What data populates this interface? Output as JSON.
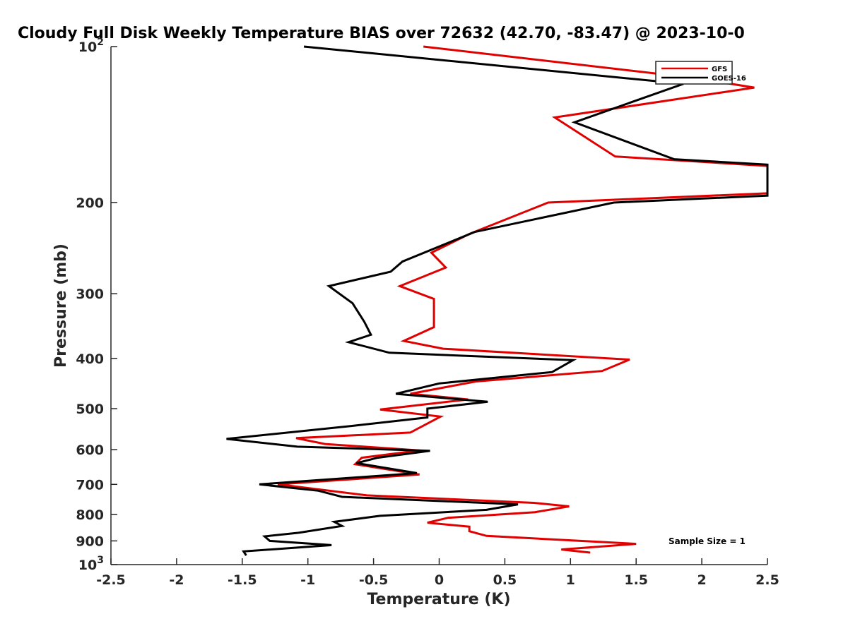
{
  "chart_data": {
    "type": "line",
    "title": "Cloudy Full Disk Weekly Temperature BIAS over 72632 (42.70, -83.47) @ 2023-10-0",
    "xlabel": "Temperature (K)",
    "ylabel": "Pressure (mb)",
    "xlim": [
      -2.5,
      2.5
    ],
    "ylim": [
      100,
      1000
    ],
    "y_scale": "log",
    "y_reversed": true,
    "grid": false,
    "legend_position": "top-right",
    "x_ticks": [
      -2.5,
      -2,
      -1.5,
      -1,
      -0.5,
      0,
      0.5,
      1,
      1.5,
      2,
      2.5
    ],
    "x_tick_labels": [
      "-2.5",
      "-2",
      "-1.5",
      "-1",
      "-0.5",
      "0",
      "0.5",
      "1",
      "1.5",
      "2",
      "2.5"
    ],
    "y_ticks": [
      100,
      200,
      300,
      400,
      500,
      600,
      700,
      800,
      900,
      1000
    ],
    "y_tick_labels": [
      {
        "base": "10",
        "exp": "2"
      },
      {
        "base": "200",
        "exp": ""
      },
      {
        "base": "300",
        "exp": ""
      },
      {
        "base": "400",
        "exp": ""
      },
      {
        "base": "500",
        "exp": ""
      },
      {
        "base": "600",
        "exp": ""
      },
      {
        "base": "700",
        "exp": ""
      },
      {
        "base": "800",
        "exp": ""
      },
      {
        "base": "900",
        "exp": ""
      },
      {
        "base": "10",
        "exp": "3"
      }
    ],
    "series": [
      {
        "name": "GFS",
        "color": "#e00000",
        "points": [
          {
            "x": -0.12,
            "y": 100
          },
          {
            "x": 1.95,
            "y": 115
          },
          {
            "x": 2.4,
            "y": 120
          },
          {
            "x": 0.88,
            "y": 137
          },
          {
            "x": 1.34,
            "y": 163
          },
          {
            "x": 2.5,
            "y": 170
          },
          {
            "x": 2.5,
            "y": 192
          },
          {
            "x": 0.83,
            "y": 200
          },
          {
            "x": 0.23,
            "y": 230
          },
          {
            "x": -0.06,
            "y": 250
          },
          {
            "x": 0.05,
            "y": 267
          },
          {
            "x": -0.3,
            "y": 290
          },
          {
            "x": -0.04,
            "y": 307
          },
          {
            "x": -0.04,
            "y": 348
          },
          {
            "x": -0.27,
            "y": 370
          },
          {
            "x": 0.03,
            "y": 383
          },
          {
            "x": 1.45,
            "y": 402
          },
          {
            "x": 1.24,
            "y": 423
          },
          {
            "x": 0.28,
            "y": 443
          },
          {
            "x": -0.22,
            "y": 468
          },
          {
            "x": 0.22,
            "y": 480
          },
          {
            "x": -0.45,
            "y": 502
          },
          {
            "x": 0.01,
            "y": 518
          },
          {
            "x": -0.22,
            "y": 556
          },
          {
            "x": -1.09,
            "y": 570
          },
          {
            "x": -0.87,
            "y": 585
          },
          {
            "x": -0.15,
            "y": 602
          },
          {
            "x": -0.59,
            "y": 622
          },
          {
            "x": -0.64,
            "y": 640
          },
          {
            "x": -0.15,
            "y": 670
          },
          {
            "x": -1.23,
            "y": 700
          },
          {
            "x": -0.55,
            "y": 735
          },
          {
            "x": 0.72,
            "y": 760
          },
          {
            "x": 0.99,
            "y": 772
          },
          {
            "x": 0.73,
            "y": 792
          },
          {
            "x": 0.07,
            "y": 812
          },
          {
            "x": -0.09,
            "y": 830
          },
          {
            "x": 0.23,
            "y": 845
          },
          {
            "x": 0.23,
            "y": 862
          },
          {
            "x": 0.36,
            "y": 880
          },
          {
            "x": 1.5,
            "y": 912
          },
          {
            "x": 0.93,
            "y": 935
          },
          {
            "x": 1.15,
            "y": 948
          }
        ]
      },
      {
        "name": "GOES-16",
        "color": "#000000",
        "points": [
          {
            "x": -1.03,
            "y": 100
          },
          {
            "x": 1.86,
            "y": 118
          },
          {
            "x": 1.03,
            "y": 140
          },
          {
            "x": 1.79,
            "y": 165
          },
          {
            "x": 2.5,
            "y": 169
          },
          {
            "x": 2.5,
            "y": 194
          },
          {
            "x": 1.33,
            "y": 200
          },
          {
            "x": 0.27,
            "y": 228
          },
          {
            "x": -0.28,
            "y": 260
          },
          {
            "x": -0.37,
            "y": 272
          },
          {
            "x": -0.84,
            "y": 290
          },
          {
            "x": -0.66,
            "y": 313
          },
          {
            "x": -0.57,
            "y": 340
          },
          {
            "x": -0.52,
            "y": 360
          },
          {
            "x": -0.69,
            "y": 372
          },
          {
            "x": -0.38,
            "y": 390
          },
          {
            "x": 1.02,
            "y": 403
          },
          {
            "x": 0.86,
            "y": 425
          },
          {
            "x": 0,
            "y": 447
          },
          {
            "x": -0.33,
            "y": 468
          },
          {
            "x": 0.37,
            "y": 485
          },
          {
            "x": -0.09,
            "y": 500
          },
          {
            "x": -0.09,
            "y": 520
          },
          {
            "x": -0.67,
            "y": 540
          },
          {
            "x": -1.62,
            "y": 572
          },
          {
            "x": -1.08,
            "y": 592
          },
          {
            "x": -0.07,
            "y": 603
          },
          {
            "x": -0.47,
            "y": 622
          },
          {
            "x": -0.63,
            "y": 637
          },
          {
            "x": -0.17,
            "y": 666
          },
          {
            "x": -1.37,
            "y": 700
          },
          {
            "x": -0.92,
            "y": 720
          },
          {
            "x": -0.74,
            "y": 740
          },
          {
            "x": 0.6,
            "y": 765
          },
          {
            "x": 0.36,
            "y": 784
          },
          {
            "x": -0.45,
            "y": 805
          },
          {
            "x": -0.8,
            "y": 827
          },
          {
            "x": -0.74,
            "y": 842
          },
          {
            "x": -1.07,
            "y": 868
          },
          {
            "x": -1.33,
            "y": 882
          },
          {
            "x": -1.29,
            "y": 900
          },
          {
            "x": -0.82,
            "y": 917
          },
          {
            "x": -1.49,
            "y": 943
          },
          {
            "x": -1.47,
            "y": 960
          }
        ]
      }
    ],
    "annotations": [
      {
        "text": "Sample Size = 1"
      }
    ]
  }
}
